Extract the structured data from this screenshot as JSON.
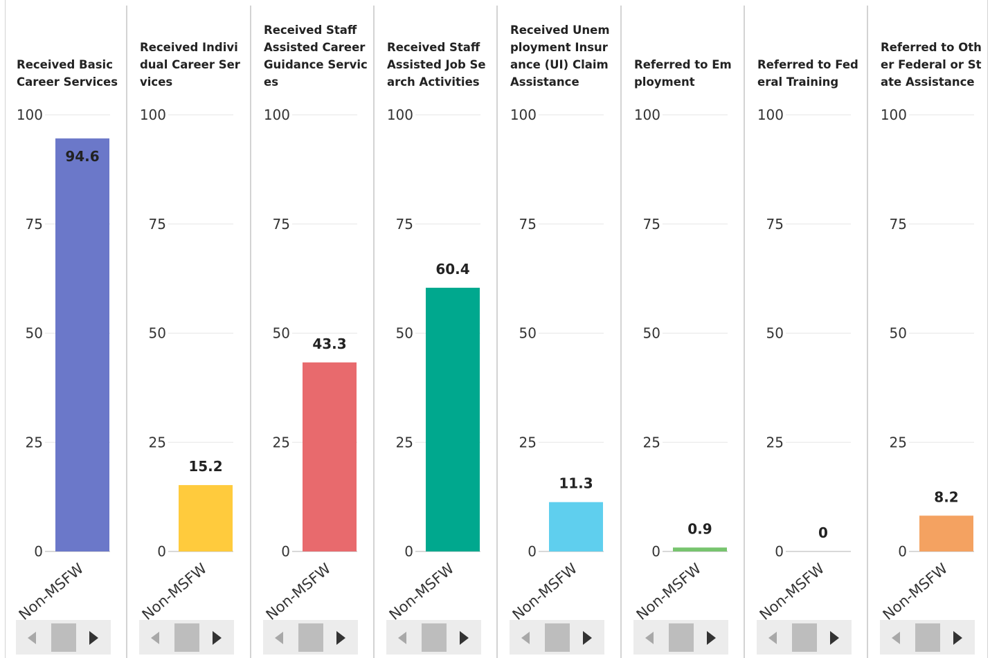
{
  "colors": {
    "gridline": "#e6e6e6",
    "axis": "#cccccc",
    "label": "#222222"
  },
  "chart_data": [
    {
      "type": "bar",
      "title": "Received Basic Career Services",
      "categories": [
        "Non-MSFW"
      ],
      "values": [
        94.6
      ],
      "color": "#6b78c9",
      "ylim": [
        0,
        100
      ],
      "yticks": [
        "0",
        "25",
        "50",
        "75",
        "100"
      ],
      "grid": true,
      "data_labels": [
        "94.6"
      ]
    },
    {
      "type": "bar",
      "title": "Received Individual Career Services",
      "categories": [
        "Non-MSFW"
      ],
      "values": [
        15.2
      ],
      "color": "#ffcb3d",
      "ylim": [
        0,
        100
      ],
      "yticks": [
        "0",
        "25",
        "50",
        "75",
        "100"
      ],
      "grid": true,
      "data_labels": [
        "15.2"
      ]
    },
    {
      "type": "bar",
      "title": "Received Staff Assisted Career Guidance Services",
      "categories": [
        "Non-MSFW"
      ],
      "values": [
        43.3
      ],
      "color": "#e86a6d",
      "ylim": [
        0,
        100
      ],
      "yticks": [
        "0",
        "25",
        "50",
        "75",
        "100"
      ],
      "grid": true,
      "data_labels": [
        "43.3"
      ]
    },
    {
      "type": "bar",
      "title": "Received Staff Assisted Job Search Activities",
      "categories": [
        "Non-MSFW"
      ],
      "values": [
        60.4
      ],
      "color": "#00a88e",
      "ylim": [
        0,
        100
      ],
      "yticks": [
        "0",
        "25",
        "50",
        "75",
        "100"
      ],
      "grid": true,
      "data_labels": [
        "60.4"
      ]
    },
    {
      "type": "bar",
      "title": "Received Unemployment Insurance (UI) Claim Assistance",
      "categories": [
        "Non-MSFW"
      ],
      "values": [
        11.3
      ],
      "color": "#5fcfee",
      "ylim": [
        0,
        100
      ],
      "yticks": [
        "0",
        "25",
        "50",
        "75",
        "100"
      ],
      "grid": true,
      "data_labels": [
        "11.3"
      ]
    },
    {
      "type": "bar",
      "title": "Referred to Employment",
      "categories": [
        "Non-MSFW"
      ],
      "values": [
        0.9
      ],
      "color": "#77c46e",
      "ylim": [
        0,
        100
      ],
      "yticks": [
        "0",
        "25",
        "50",
        "75",
        "100"
      ],
      "grid": true,
      "data_labels": [
        "0.9"
      ]
    },
    {
      "type": "bar",
      "title": "Referred to Federal Training",
      "categories": [
        "Non-MSFW"
      ],
      "values": [
        0
      ],
      "color": "#9a7fd1",
      "ylim": [
        0,
        100
      ],
      "yticks": [
        "0",
        "25",
        "50",
        "75",
        "100"
      ],
      "grid": true,
      "data_labels": [
        "0"
      ]
    },
    {
      "type": "bar",
      "title": "Referred to Other Federal or State Assistance",
      "categories": [
        "Non-MSFW"
      ],
      "values": [
        8.2
      ],
      "color": "#f4a261",
      "ylim": [
        0,
        100
      ],
      "yticks": [
        "0",
        "25",
        "50",
        "75",
        "100"
      ],
      "grid": true,
      "data_labels": [
        "8.2"
      ]
    }
  ]
}
